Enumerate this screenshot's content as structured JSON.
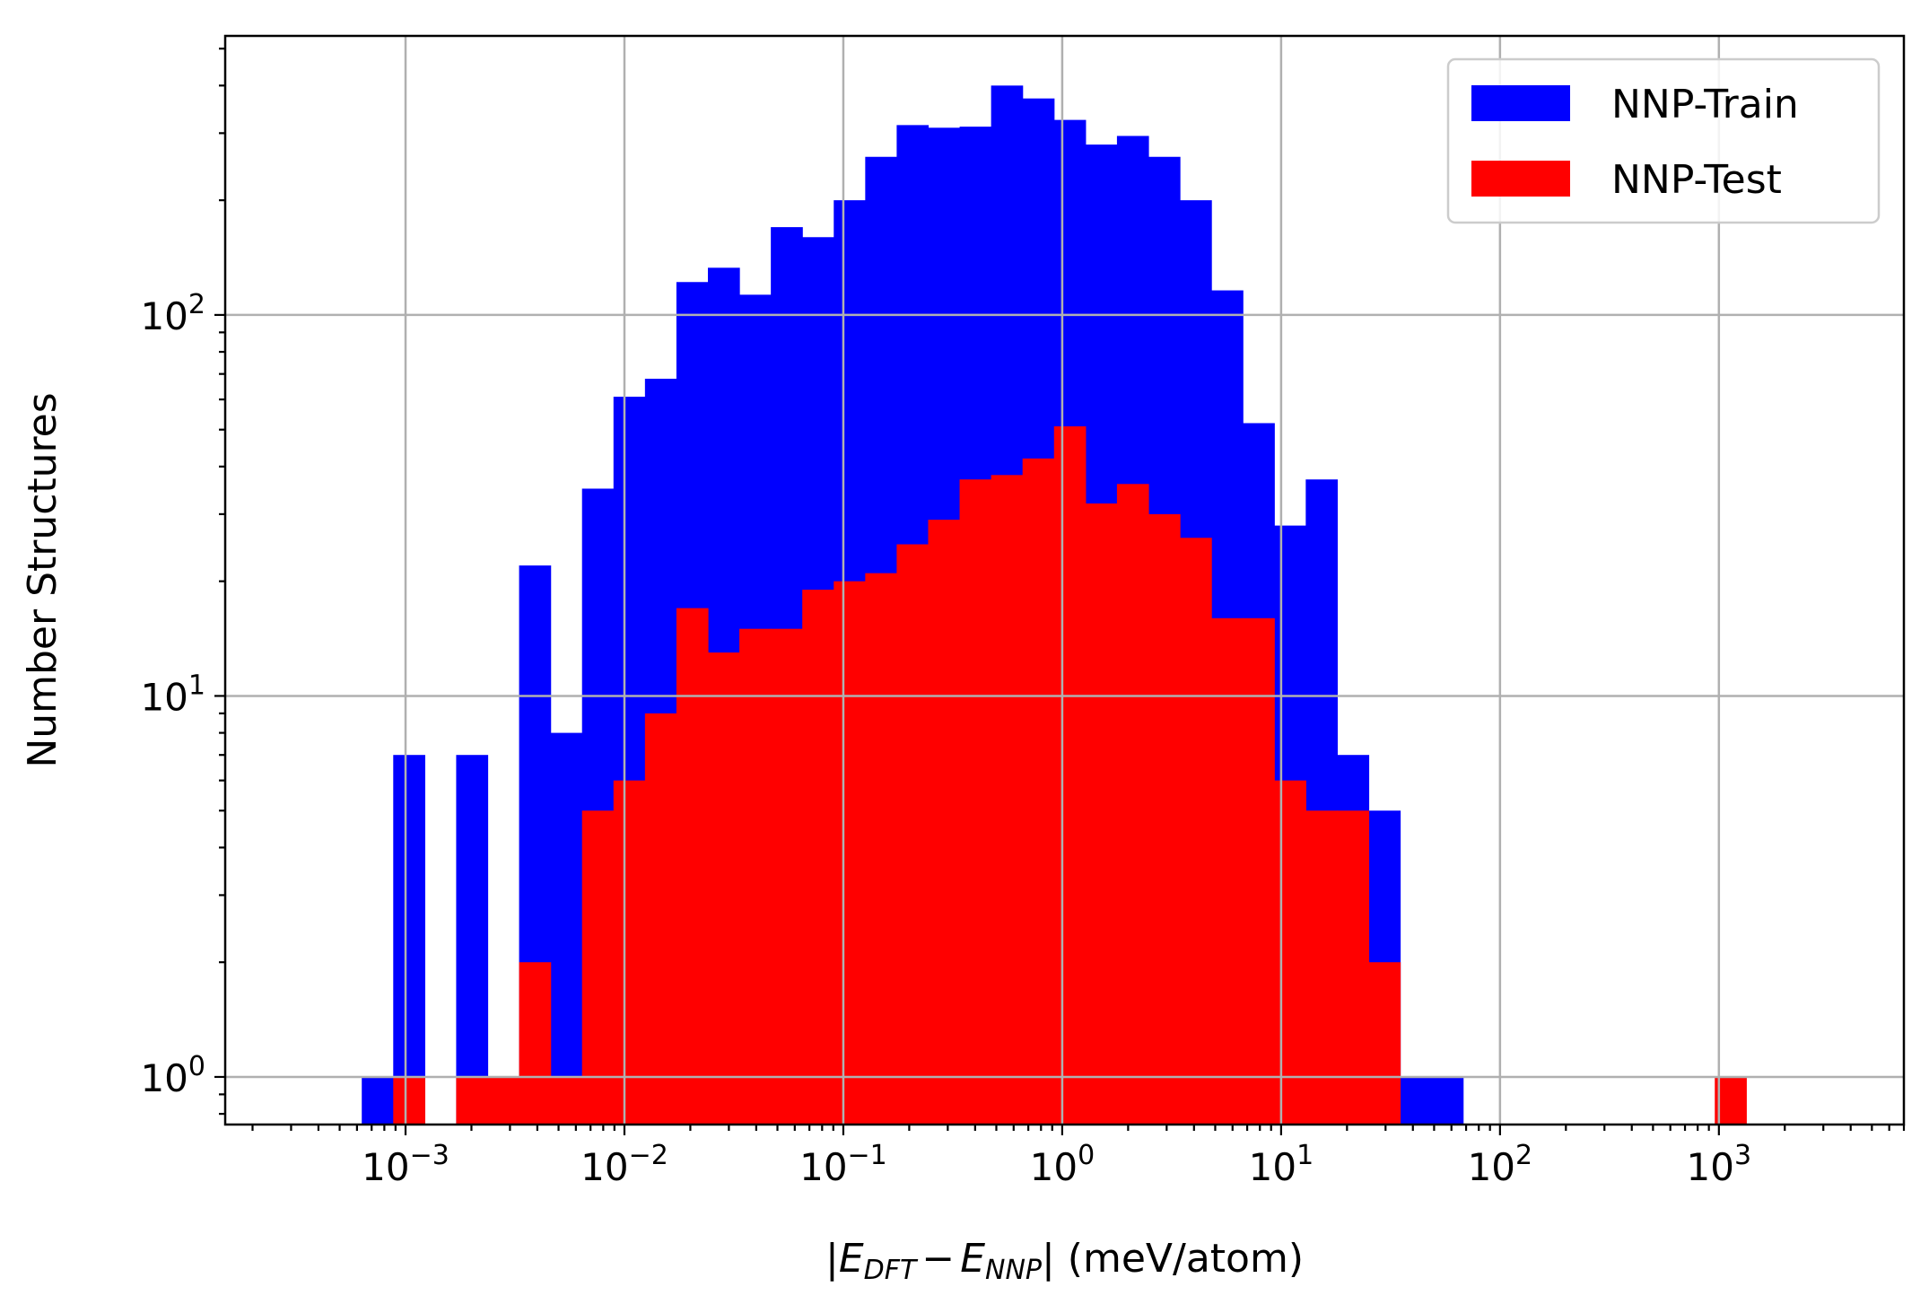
{
  "chart_data": {
    "type": "bar",
    "x_scale": "log",
    "y_scale": "log",
    "xlim": [
      0.00015,
      7000
    ],
    "ylim": [
      0.75,
      540
    ],
    "grid": true,
    "legend_position": "top-right",
    "xlabel": {
      "prefix": "|",
      "e1": "E",
      "sub1": "DFT",
      "minus": "−",
      "e2": "E",
      "sub2": "NNP",
      "suffix": "| (meV/atom)"
    },
    "ylabel": "Number Structures",
    "x_ticks": [
      {
        "value": 0.001,
        "base": "10",
        "exp": "−3"
      },
      {
        "value": 0.01,
        "base": "10",
        "exp": "−2"
      },
      {
        "value": 0.1,
        "base": "10",
        "exp": "−1"
      },
      {
        "value": 1,
        "base": "10",
        "exp": "0"
      },
      {
        "value": 10,
        "base": "10",
        "exp": "1"
      },
      {
        "value": 100,
        "base": "10",
        "exp": "2"
      },
      {
        "value": 1000,
        "base": "10",
        "exp": "3"
      }
    ],
    "y_ticks": [
      {
        "value": 1,
        "base": "10",
        "exp": "0"
      },
      {
        "value": 10,
        "base": "10",
        "exp": "1"
      },
      {
        "value": 100,
        "base": "10",
        "exp": "2"
      }
    ],
    "bin_start_log10": -3.2,
    "bin_width_log10": 0.14375,
    "series": [
      {
        "name": "NNP-Train",
        "color": "#0000ff",
        "counts": [
          1,
          7,
          0,
          7,
          0,
          22,
          8,
          35,
          61,
          68,
          122,
          133,
          113,
          170,
          160,
          200,
          260,
          315,
          310,
          312,
          400,
          370,
          325,
          280,
          295,
          260,
          200,
          116,
          52,
          28,
          37,
          7,
          5,
          1,
          1,
          0,
          0,
          0,
          0,
          0,
          0,
          0,
          0,
          0,
          0,
          0,
          0
        ]
      },
      {
        "name": "NNP-Test",
        "color": "#ff0000",
        "counts": [
          0,
          1,
          0,
          1,
          1,
          2,
          1,
          5,
          6,
          9,
          17,
          13,
          15,
          15,
          19,
          20,
          21,
          25,
          29,
          37,
          38,
          42,
          51,
          32,
          36,
          30,
          26,
          16,
          16,
          6,
          5,
          5,
          2,
          0,
          0,
          0,
          0,
          0,
          0,
          0,
          0,
          0,
          0,
          1,
          0,
          0,
          0
        ]
      }
    ]
  }
}
